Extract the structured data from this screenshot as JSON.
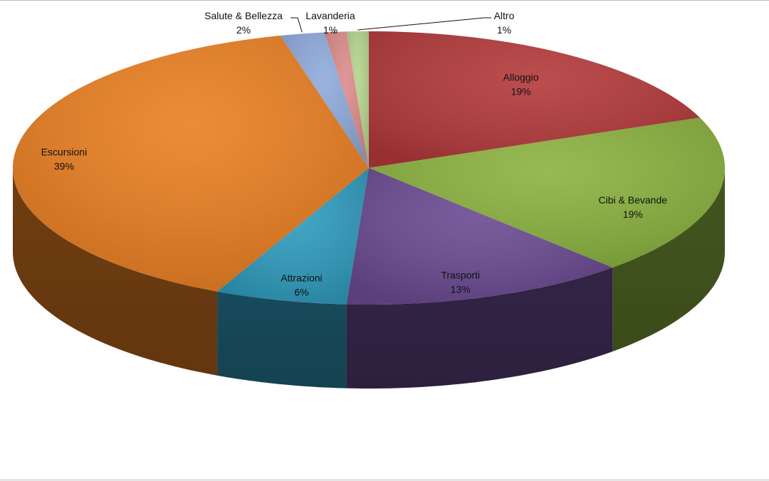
{
  "chart_data": {
    "type": "pie",
    "style": "3d",
    "title": "",
    "legend": "none",
    "slices": [
      {
        "label": "Alloggio",
        "value": 19,
        "pct_label": "19%",
        "color": "#b3393a"
      },
      {
        "label": "Cibi & Bevande",
        "value": 19,
        "pct_label": "19%",
        "color": "#8bb23f"
      },
      {
        "label": "Trasporti",
        "value": 13,
        "pct_label": "13%",
        "color": "#6a4a92"
      },
      {
        "label": "Attrazioni",
        "value": 6,
        "pct_label": "6%",
        "color": "#2f9bbd"
      },
      {
        "label": "Escursioni",
        "value": 39,
        "pct_label": "39%",
        "color": "#e97f22"
      },
      {
        "label": "Salute & Bellezza",
        "value": 2,
        "pct_label": "2%",
        "color": "#8eaadb"
      },
      {
        "label": "Lavanderia",
        "value": 1,
        "pct_label": "1%",
        "color": "#dc8b8b"
      },
      {
        "label": "Altro",
        "value": 1,
        "pct_label": "1%",
        "color": "#b5d48d"
      }
    ]
  }
}
